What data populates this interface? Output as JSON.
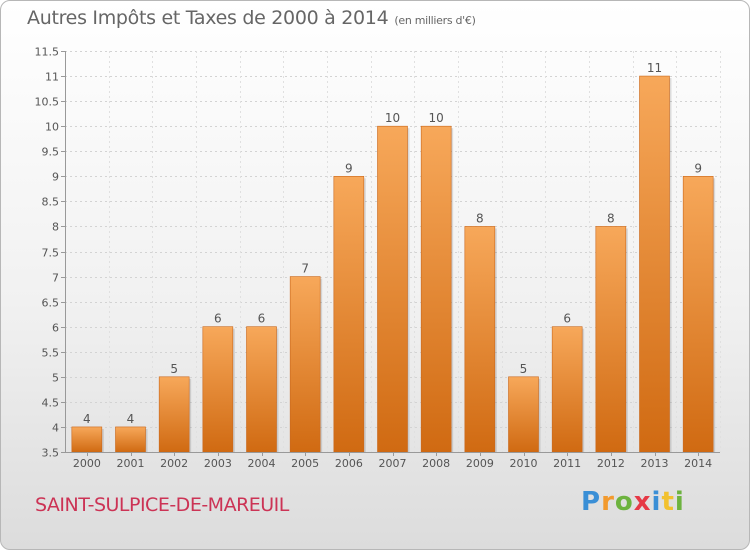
{
  "title": "Autres Impôts et Taxes de 2000 à 2014",
  "subtitle": "(en milliers d'€)",
  "place": "SAINT-SULPICE-DE-MAREUIL",
  "logo": {
    "text": "Proxiti",
    "letters": [
      {
        "ch": "P",
        "color": "#3a8fd6"
      },
      {
        "ch": "r",
        "color": "#f29a2e"
      },
      {
        "ch": "o",
        "color": "#6db33f"
      },
      {
        "ch": "x",
        "color": "#e63946"
      },
      {
        "ch": "i",
        "color": "#3a8fd6"
      },
      {
        "ch": "t",
        "color": "#f2c12e"
      },
      {
        "ch": "i",
        "color": "#6db33f"
      }
    ]
  },
  "colors": {
    "bar_top": "#f7a85a",
    "bar_bottom": "#d06a12",
    "title": "#666666",
    "place": "#cc3355"
  },
  "chart_data": {
    "type": "bar",
    "categories": [
      "2000",
      "2001",
      "2002",
      "2003",
      "2004",
      "2005",
      "2006",
      "2007",
      "2008",
      "2009",
      "2010",
      "2011",
      "2012",
      "2013",
      "2014"
    ],
    "values": [
      4,
      4,
      5,
      6,
      6,
      7,
      9,
      10,
      10,
      8,
      5,
      6,
      8,
      11,
      9
    ],
    "data_labels": [
      "4",
      "4",
      "5",
      "6",
      "6",
      "7",
      "9",
      "10",
      "10",
      "8",
      "5",
      "6",
      "8",
      "11",
      "9"
    ],
    "ylim": [
      3.5,
      11.5
    ],
    "yticks": [
      3.5,
      4,
      4.5,
      5,
      5.5,
      6,
      6.5,
      7,
      7.5,
      8,
      8.5,
      9,
      9.5,
      10,
      10.5,
      11,
      11.5
    ],
    "ytick_labels": [
      "3.5",
      "4",
      "4.5",
      "5",
      "5.5",
      "6",
      "6.5",
      "7",
      "7.5",
      "8",
      "8.5",
      "9",
      "9.5",
      "10",
      "10.5",
      "11",
      "11.5"
    ],
    "grid": true
  }
}
